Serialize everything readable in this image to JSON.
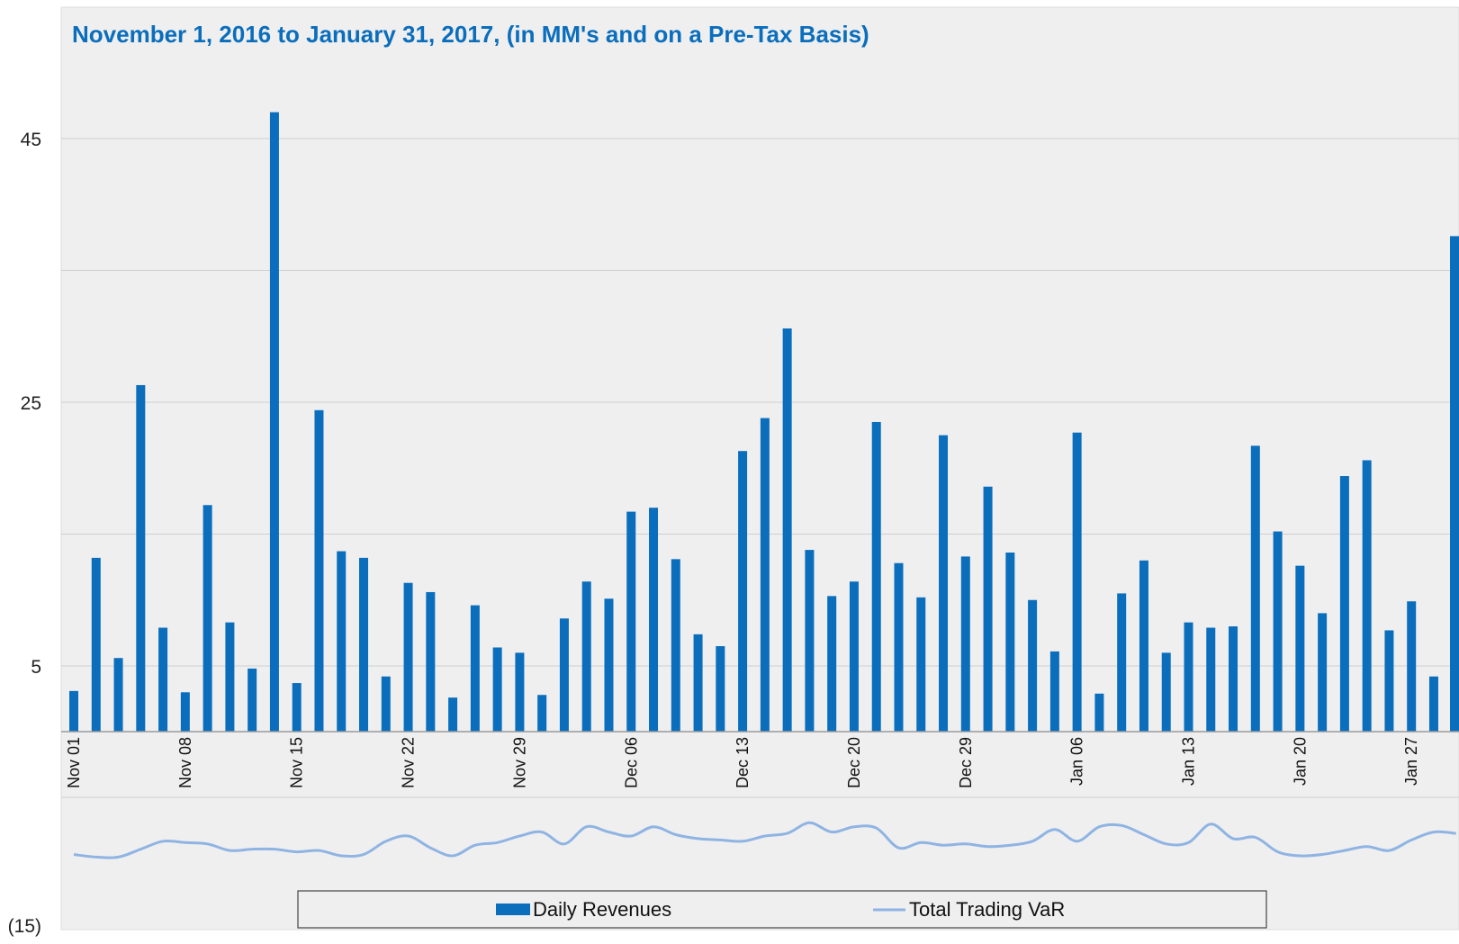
{
  "chart_data": {
    "type": "bar",
    "title": "November 1, 2016 to January 31, 2017, (in MM's and on a Pre-Tax Basis)",
    "xlabel": "",
    "ylabel": "",
    "ylim": [
      -15,
      49
    ],
    "y_ticks": [
      {
        "value": 45,
        "label": "45"
      },
      {
        "value": 25,
        "label": "25"
      },
      {
        "value": 5,
        "label": "5"
      },
      {
        "value": -15,
        "label": "(15)"
      }
    ],
    "x_tick_labels": [
      {
        "bar_index": 0,
        "label": "Nov 01"
      },
      {
        "bar_index": 5,
        "label": "Nov 08"
      },
      {
        "bar_index": 10,
        "label": "Nov 15"
      },
      {
        "bar_index": 15,
        "label": "Nov 22"
      },
      {
        "bar_index": 20,
        "label": "Nov 29"
      },
      {
        "bar_index": 25,
        "label": "Dec 06"
      },
      {
        "bar_index": 30,
        "label": "Dec 13"
      },
      {
        "bar_index": 35,
        "label": "Dec 20"
      },
      {
        "bar_index": 40,
        "label": "Dec 29"
      },
      {
        "bar_index": 45,
        "label": "Jan 06"
      },
      {
        "bar_index": 50,
        "label": "Jan 13"
      },
      {
        "bar_index": 55,
        "label": "Jan 20"
      },
      {
        "bar_index": 60,
        "label": "Jan 27"
      }
    ],
    "series": [
      {
        "name": "Daily Revenues",
        "kind": "bar",
        "color": "#0a6ebd",
        "values": [
          3.1,
          13.2,
          5.6,
          26.3,
          7.9,
          3.0,
          17.2,
          8.3,
          4.8,
          47.0,
          3.7,
          24.4,
          13.7,
          13.2,
          4.2,
          11.3,
          10.6,
          2.6,
          9.6,
          6.4,
          6.0,
          2.8,
          8.6,
          11.4,
          10.1,
          16.7,
          17.0,
          13.1,
          7.4,
          6.5,
          21.3,
          23.8,
          30.6,
          13.8,
          10.3,
          11.4,
          23.5,
          12.8,
          10.2,
          22.5,
          13.3,
          18.6,
          13.6,
          10.0,
          6.1,
          22.7,
          2.9,
          10.5,
          13.0,
          6.0,
          8.3,
          7.9,
          8.0,
          21.7,
          15.2,
          12.6,
          9.0,
          19.4,
          20.6,
          7.7,
          9.9,
          4.2,
          37.6
        ]
      },
      {
        "name": "Total Trading VaR",
        "kind": "line",
        "color": "#8fb4e3",
        "values": [
          -9.3,
          -9.5,
          -9.5,
          -8.9,
          -8.3,
          -8.4,
          -8.5,
          -9.0,
          -8.9,
          -8.9,
          -9.1,
          -9.0,
          -9.4,
          -9.3,
          -8.3,
          -7.9,
          -8.8,
          -9.4,
          -8.6,
          -8.4,
          -7.9,
          -7.6,
          -8.5,
          -7.2,
          -7.6,
          -7.9,
          -7.2,
          -7.8,
          -8.1,
          -8.2,
          -8.3,
          -7.9,
          -7.7,
          -6.9,
          -7.6,
          -7.2,
          -7.3,
          -8.8,
          -8.4,
          -8.6,
          -8.5,
          -8.7,
          -8.6,
          -8.3,
          -7.4,
          -8.3,
          -7.2,
          -7.1,
          -7.8,
          -8.5,
          -8.4,
          -7.0,
          -8.1,
          -8.0,
          -9.1,
          -9.4,
          -9.3,
          -9.0,
          -8.7,
          -9.0,
          -8.2,
          -7.6,
          -7.7
        ]
      }
    ],
    "grid": true,
    "legend_position": "bottom"
  },
  "colors": {
    "plot_bg": "#efefef",
    "grid": "#cfcfcf",
    "title": "#0a6ebd",
    "bar": "#0a6ebd",
    "line": "#8fb4e3"
  }
}
